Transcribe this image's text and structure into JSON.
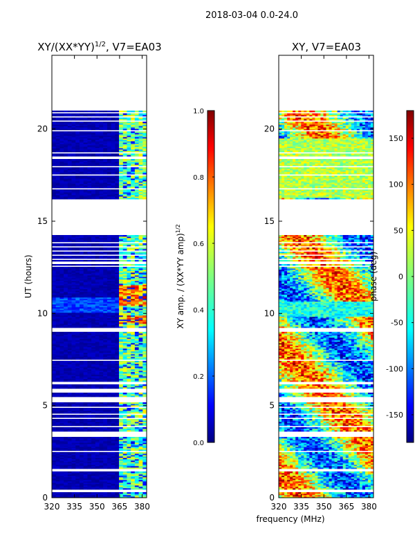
{
  "suptitle": "2018-03-04 0.0-24.0",
  "colors": {
    "jet": [
      "#00007f",
      "#0000ff",
      "#007fff",
      "#00ffff",
      "#7fff7f",
      "#ffff00",
      "#ff7f00",
      "#ff0000",
      "#7f0000"
    ]
  },
  "chart_data": [
    {
      "type": "heatmap",
      "title": "XY/(XX*YY)",
      "title_superscript": "1/2",
      "title_suffix": ", V7=EA03",
      "xlabel": "",
      "ylabel": "UT (hours)",
      "xlim": [
        320,
        383
      ],
      "ylim": [
        0,
        24
      ],
      "xticks": [
        320,
        335,
        350,
        365,
        380
      ],
      "yticks": [
        0,
        5,
        10,
        15,
        20
      ],
      "data_extent_hours": [
        0,
        21
      ],
      "band_mhz": [
        364,
        383
      ],
      "vlim": [
        0.0,
        1.0
      ],
      "colorbar": {
        "label": "XY amp. / (XX*YY amp)",
        "label_superscript": "1/2",
        "ticks": [
          "0.0",
          "0.2",
          "0.4",
          "0.6",
          "0.8",
          "1.0"
        ],
        "range": [
          0.0,
          1.0
        ]
      }
    },
    {
      "type": "heatmap",
      "title": "XY, V7=EA03",
      "xlabel": "frequency (MHz)",
      "ylabel": "",
      "xlim": [
        320,
        383
      ],
      "ylim": [
        0,
        24
      ],
      "xticks": [
        320,
        335,
        350,
        365,
        380
      ],
      "yticks": [
        0,
        5,
        10,
        15,
        20
      ],
      "data_extent_hours": [
        0,
        21
      ],
      "vlim": [
        -180,
        180
      ],
      "colorbar": {
        "label": "phase (deg)",
        "ticks": [
          "-150",
          "-100",
          "-50",
          "0",
          "50",
          "100",
          "150"
        ],
        "range": [
          -180,
          180
        ]
      }
    }
  ],
  "gaps_hours": [
    [
      0.3,
      0.45
    ],
    [
      1.4,
      1.6
    ],
    [
      2.5,
      2.55
    ],
    [
      3.3,
      3.6
    ],
    [
      3.85,
      3.9
    ],
    [
      4.1,
      4.15
    ],
    [
      4.3,
      4.35
    ],
    [
      4.5,
      4.55
    ],
    [
      4.7,
      4.75
    ],
    [
      4.9,
      4.95
    ],
    [
      5.15,
      5.5
    ],
    [
      5.7,
      5.95
    ],
    [
      6.15,
      6.3
    ],
    [
      7.45,
      7.5
    ],
    [
      9.0,
      9.25
    ],
    [
      12.5,
      12.6
    ],
    [
      12.7,
      12.8
    ],
    [
      12.9,
      13.0
    ],
    [
      13.1,
      13.2
    ],
    [
      13.35,
      13.45
    ],
    [
      13.6,
      13.65
    ],
    [
      13.8,
      13.85
    ],
    [
      14.0,
      14.05
    ],
    [
      14.25,
      16.2
    ],
    [
      16.7,
      16.8
    ],
    [
      17.15,
      17.2
    ],
    [
      17.5,
      17.55
    ],
    [
      17.95,
      18.0
    ],
    [
      18.2,
      18.25
    ],
    [
      18.4,
      18.5
    ],
    [
      18.65,
      18.75
    ],
    [
      19.9,
      19.95
    ],
    [
      20.4,
      20.5
    ],
    [
      20.65,
      20.7
    ],
    [
      20.85,
      20.9
    ]
  ]
}
